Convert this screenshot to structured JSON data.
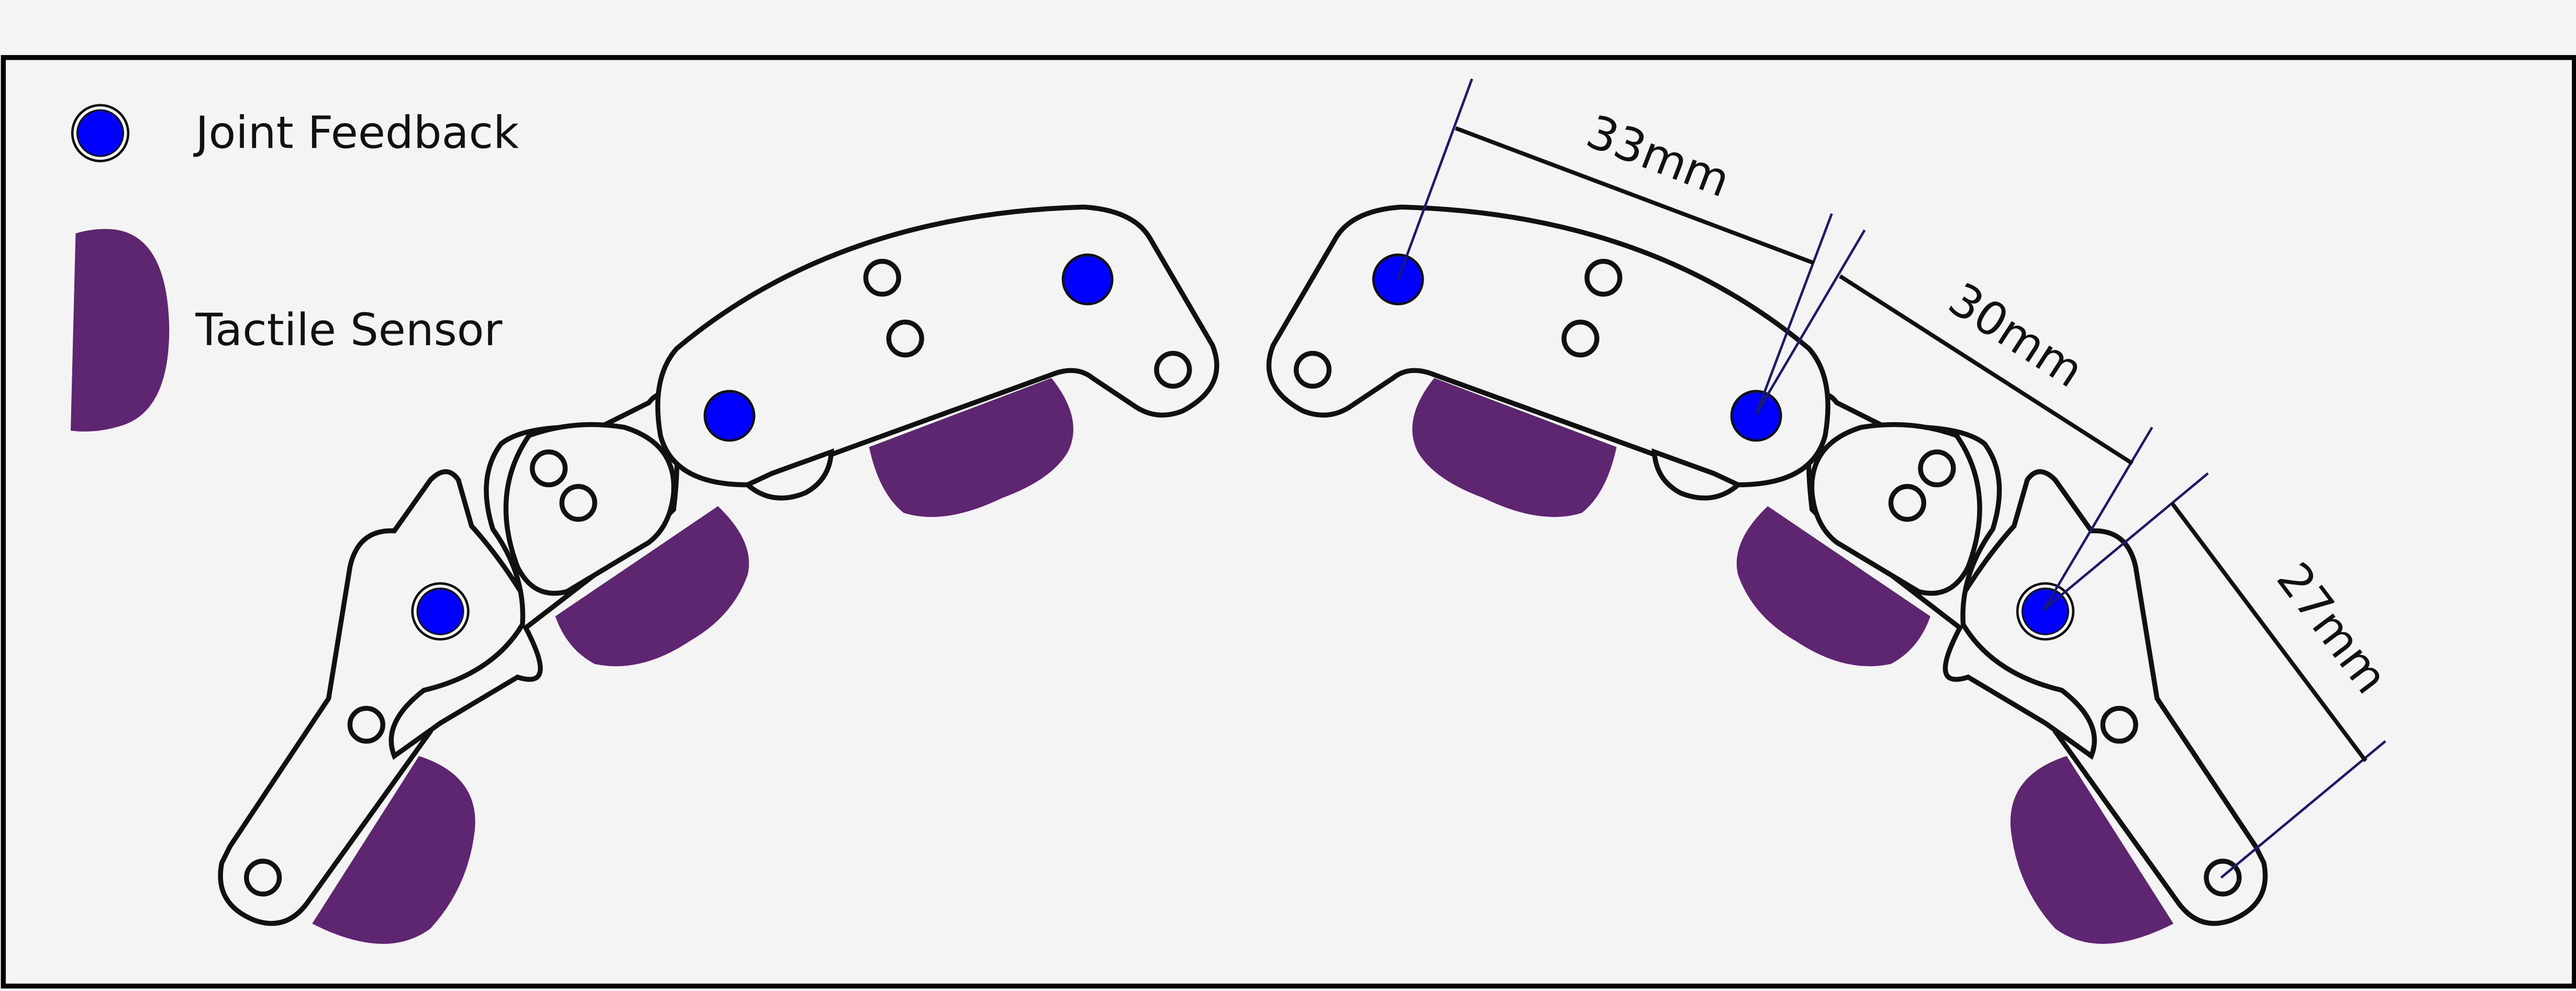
{
  "legend": {
    "joint_feedback_label": "Joint Feedback",
    "tactile_sensor_label": "Tactile Sensor"
  },
  "dimensions": {
    "distal_link": "33mm",
    "middle_link": "30mm",
    "proximal_link": "27mm"
  },
  "colors": {
    "joint_feedback": "#0000ff",
    "tactile_sensor": "#5e2570",
    "dimension_line": "#1a1a6e",
    "outline": "#111111",
    "background": "#f4f4f4"
  },
  "icons": {
    "joint_feedback": "blue-circle-marker",
    "tactile_sensor": "purple-pad-shape"
  }
}
